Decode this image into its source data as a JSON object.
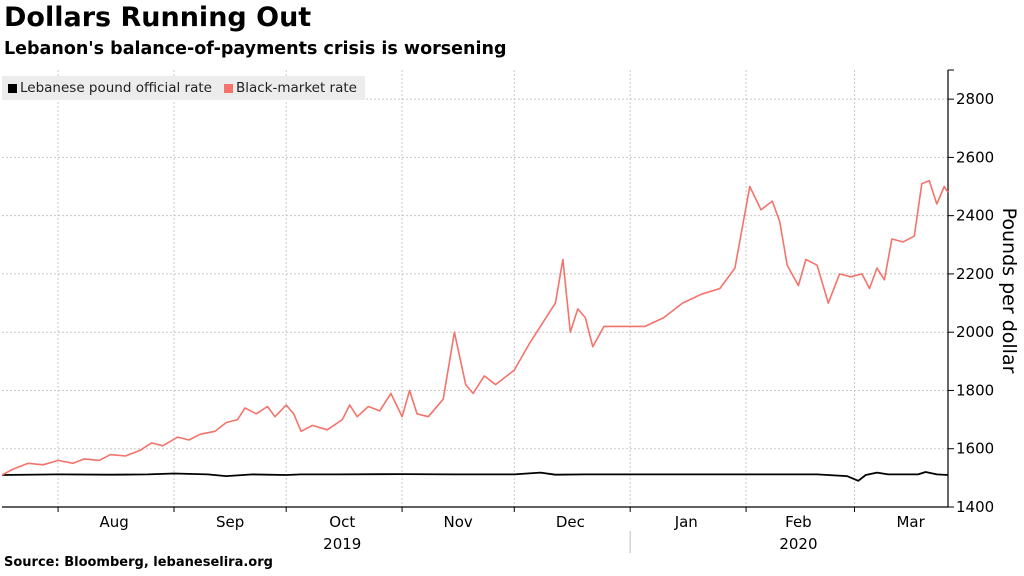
{
  "header": {
    "title": "Dollars Running Out",
    "subtitle": "Lebanon's balance-of-payments crisis is worsening"
  },
  "footer": {
    "source": "Source: Bloomberg, lebaneselira.org"
  },
  "colors": {
    "official": "#000000",
    "black_market": "#f4736b",
    "grid": "#c8c8c8",
    "legend_bg": "#ececec"
  },
  "chart_data": {
    "type": "line",
    "ylabel": "Pounds per dollar",
    "ylim": [
      1400,
      2900
    ],
    "y_ticks": [
      1400,
      1600,
      1800,
      2000,
      2200,
      2400,
      2600,
      2800
    ],
    "xlim": [
      "2019-07-17",
      "2020-03-26"
    ],
    "x_month_labels": [
      {
        "label": "Aug",
        "date": "2019-08-16"
      },
      {
        "label": "Sep",
        "date": "2019-09-16"
      },
      {
        "label": "Oct",
        "date": "2019-10-16"
      },
      {
        "label": "Nov",
        "date": "2019-11-16"
      },
      {
        "label": "Dec",
        "date": "2019-12-16"
      },
      {
        "label": "Jan",
        "date": "2020-01-16"
      },
      {
        "label": "Feb",
        "date": "2020-02-15"
      },
      {
        "label": "Mar",
        "date": "2020-03-16"
      }
    ],
    "x_year_labels": [
      {
        "label": "2019",
        "date": "2019-10-16"
      },
      {
        "label": "2020",
        "date": "2020-02-15"
      }
    ],
    "month_gridlines": [
      "2019-08-01",
      "2019-09-01",
      "2019-10-01",
      "2019-11-01",
      "2019-12-01",
      "2020-01-01",
      "2020-02-01",
      "2020-03-01"
    ],
    "year_divider": "2020-01-01",
    "grid": true,
    "legend_position": "top-left",
    "series": [
      {
        "name": "Lebanese pound official rate",
        "color": "#000000",
        "points": [
          [
            "2019-07-17",
            1510
          ],
          [
            "2019-08-01",
            1512
          ],
          [
            "2019-08-15",
            1511
          ],
          [
            "2019-08-25",
            1512
          ],
          [
            "2019-09-01",
            1515
          ],
          [
            "2019-09-10",
            1512
          ],
          [
            "2019-09-15",
            1506
          ],
          [
            "2019-09-22",
            1512
          ],
          [
            "2019-10-01",
            1510
          ],
          [
            "2019-10-05",
            1512
          ],
          [
            "2019-10-15",
            1512
          ],
          [
            "2019-11-01",
            1513
          ],
          [
            "2019-11-15",
            1512
          ],
          [
            "2019-12-01",
            1512
          ],
          [
            "2019-12-08",
            1518
          ],
          [
            "2019-12-12",
            1511
          ],
          [
            "2019-12-20",
            1512
          ],
          [
            "2020-01-01",
            1512
          ],
          [
            "2020-01-20",
            1512
          ],
          [
            "2020-02-01",
            1512
          ],
          [
            "2020-02-20",
            1512
          ],
          [
            "2020-02-28",
            1506
          ],
          [
            "2020-03-02",
            1490
          ],
          [
            "2020-03-04",
            1510
          ],
          [
            "2020-03-07",
            1518
          ],
          [
            "2020-03-10",
            1512
          ],
          [
            "2020-03-18",
            1512
          ],
          [
            "2020-03-20",
            1520
          ],
          [
            "2020-03-23",
            1512
          ],
          [
            "2020-03-26",
            1510
          ]
        ]
      },
      {
        "name": "Black-market rate",
        "color": "#f4736b",
        "points": [
          [
            "2019-07-17",
            1510
          ],
          [
            "2019-07-20",
            1530
          ],
          [
            "2019-07-24",
            1550
          ],
          [
            "2019-07-28",
            1545
          ],
          [
            "2019-08-01",
            1560
          ],
          [
            "2019-08-05",
            1550
          ],
          [
            "2019-08-08",
            1565
          ],
          [
            "2019-08-12",
            1560
          ],
          [
            "2019-08-15",
            1580
          ],
          [
            "2019-08-19",
            1575
          ],
          [
            "2019-08-23",
            1595
          ],
          [
            "2019-08-26",
            1620
          ],
          [
            "2019-08-29",
            1610
          ],
          [
            "2019-09-02",
            1640
          ],
          [
            "2019-09-05",
            1630
          ],
          [
            "2019-09-08",
            1650
          ],
          [
            "2019-09-12",
            1660
          ],
          [
            "2019-09-15",
            1690
          ],
          [
            "2019-09-18",
            1700
          ],
          [
            "2019-09-20",
            1740
          ],
          [
            "2019-09-23",
            1720
          ],
          [
            "2019-09-26",
            1745
          ],
          [
            "2019-09-28",
            1710
          ],
          [
            "2019-10-01",
            1750
          ],
          [
            "2019-10-03",
            1720
          ],
          [
            "2019-10-05",
            1660
          ],
          [
            "2019-10-08",
            1680
          ],
          [
            "2019-10-12",
            1665
          ],
          [
            "2019-10-16",
            1700
          ],
          [
            "2019-10-18",
            1750
          ],
          [
            "2019-10-20",
            1710
          ],
          [
            "2019-10-23",
            1745
          ],
          [
            "2019-10-26",
            1730
          ],
          [
            "2019-10-29",
            1790
          ],
          [
            "2019-11-01",
            1710
          ],
          [
            "2019-11-03",
            1800
          ],
          [
            "2019-11-05",
            1720
          ],
          [
            "2019-11-08",
            1710
          ],
          [
            "2019-11-12",
            1770
          ],
          [
            "2019-11-15",
            2000
          ],
          [
            "2019-11-18",
            1820
          ],
          [
            "2019-11-20",
            1790
          ],
          [
            "2019-11-23",
            1850
          ],
          [
            "2019-11-26",
            1820
          ],
          [
            "2019-12-01",
            1870
          ],
          [
            "2019-12-05",
            1960
          ],
          [
            "2019-12-08",
            2020
          ],
          [
            "2019-12-12",
            2100
          ],
          [
            "2019-12-14",
            2250
          ],
          [
            "2019-12-16",
            2000
          ],
          [
            "2019-12-18",
            2080
          ],
          [
            "2019-12-20",
            2050
          ],
          [
            "2019-12-22",
            1950
          ],
          [
            "2019-12-25",
            2020
          ],
          [
            "2020-01-01",
            2020
          ],
          [
            "2020-01-05",
            2020
          ],
          [
            "2020-01-10",
            2050
          ],
          [
            "2020-01-15",
            2100
          ],
          [
            "2020-01-20",
            2130
          ],
          [
            "2020-01-25",
            2150
          ],
          [
            "2020-01-29",
            2220
          ],
          [
            "2020-02-02",
            2500
          ],
          [
            "2020-02-05",
            2420
          ],
          [
            "2020-02-08",
            2450
          ],
          [
            "2020-02-10",
            2380
          ],
          [
            "2020-02-12",
            2230
          ],
          [
            "2020-02-15",
            2160
          ],
          [
            "2020-02-17",
            2250
          ],
          [
            "2020-02-20",
            2230
          ],
          [
            "2020-02-23",
            2100
          ],
          [
            "2020-02-26",
            2200
          ],
          [
            "2020-02-29",
            2190
          ],
          [
            "2020-03-03",
            2200
          ],
          [
            "2020-03-05",
            2150
          ],
          [
            "2020-03-07",
            2220
          ],
          [
            "2020-03-09",
            2180
          ],
          [
            "2020-03-11",
            2320
          ],
          [
            "2020-03-14",
            2310
          ],
          [
            "2020-03-17",
            2330
          ],
          [
            "2020-03-19",
            2510
          ],
          [
            "2020-03-21",
            2520
          ],
          [
            "2020-03-23",
            2440
          ],
          [
            "2020-03-25",
            2500
          ],
          [
            "2020-03-26",
            2480
          ]
        ]
      }
    ]
  }
}
